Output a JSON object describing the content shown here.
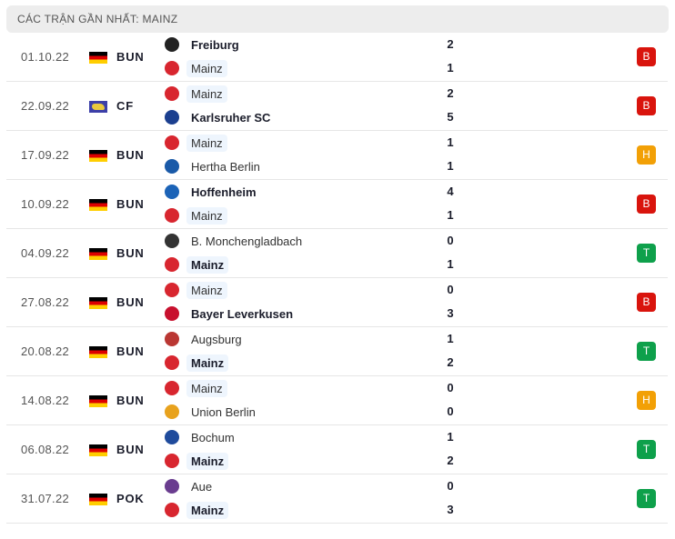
{
  "header": {
    "title": "CÁC TRẬN GẦN NHẤT: MAINZ"
  },
  "colors": {
    "loss": "#d9140d",
    "draw": "#f2a006",
    "win": "#0ea04b",
    "mainz_highlight": "#eef5fd"
  },
  "matches": [
    {
      "date": "01.10.22",
      "flag": "germany-flag-icon",
      "competition": "BUN",
      "home": {
        "name": "Freiburg",
        "logo": "freiburg-logo-icon",
        "score": "2",
        "bold": true,
        "highlight": false
      },
      "away": {
        "name": "Mainz",
        "logo": "mainz-logo-icon",
        "score": "1",
        "bold": false,
        "highlight": true
      },
      "result": "B"
    },
    {
      "date": "22.09.22",
      "flag": "world-flag-icon",
      "competition": "CF",
      "home": {
        "name": "Mainz",
        "logo": "mainz-logo-icon",
        "score": "2",
        "bold": false,
        "highlight": true
      },
      "away": {
        "name": "Karlsruher SC",
        "logo": "karlsruher-logo-icon",
        "score": "5",
        "bold": true,
        "highlight": false
      },
      "result": "B"
    },
    {
      "date": "17.09.22",
      "flag": "germany-flag-icon",
      "competition": "BUN",
      "home": {
        "name": "Mainz",
        "logo": "mainz-logo-icon",
        "score": "1",
        "bold": false,
        "highlight": true
      },
      "away": {
        "name": "Hertha Berlin",
        "logo": "hertha-logo-icon",
        "score": "1",
        "bold": false,
        "highlight": false
      },
      "result": "H"
    },
    {
      "date": "10.09.22",
      "flag": "germany-flag-icon",
      "competition": "BUN",
      "home": {
        "name": "Hoffenheim",
        "logo": "hoffenheim-logo-icon",
        "score": "4",
        "bold": true,
        "highlight": false
      },
      "away": {
        "name": "Mainz",
        "logo": "mainz-logo-icon",
        "score": "1",
        "bold": false,
        "highlight": true
      },
      "result": "B"
    },
    {
      "date": "04.09.22",
      "flag": "germany-flag-icon",
      "competition": "BUN",
      "home": {
        "name": "B. Monchengladbach",
        "logo": "gladbach-logo-icon",
        "score": "0",
        "bold": false,
        "highlight": false
      },
      "away": {
        "name": "Mainz",
        "logo": "mainz-logo-icon",
        "score": "1",
        "bold": true,
        "highlight": true
      },
      "result": "T"
    },
    {
      "date": "27.08.22",
      "flag": "germany-flag-icon",
      "competition": "BUN",
      "home": {
        "name": "Mainz",
        "logo": "mainz-logo-icon",
        "score": "0",
        "bold": false,
        "highlight": true
      },
      "away": {
        "name": "Bayer Leverkusen",
        "logo": "leverkusen-logo-icon",
        "score": "3",
        "bold": true,
        "highlight": false
      },
      "result": "B"
    },
    {
      "date": "20.08.22",
      "flag": "germany-flag-icon",
      "competition": "BUN",
      "home": {
        "name": "Augsburg",
        "logo": "augsburg-logo-icon",
        "score": "1",
        "bold": false,
        "highlight": false
      },
      "away": {
        "name": "Mainz",
        "logo": "mainz-logo-icon",
        "score": "2",
        "bold": true,
        "highlight": true
      },
      "result": "T"
    },
    {
      "date": "14.08.22",
      "flag": "germany-flag-icon",
      "competition": "BUN",
      "home": {
        "name": "Mainz",
        "logo": "mainz-logo-icon",
        "score": "0",
        "bold": false,
        "highlight": true
      },
      "away": {
        "name": "Union Berlin",
        "logo": "union-berlin-logo-icon",
        "score": "0",
        "bold": false,
        "highlight": false
      },
      "result": "H"
    },
    {
      "date": "06.08.22",
      "flag": "germany-flag-icon",
      "competition": "BUN",
      "home": {
        "name": "Bochum",
        "logo": "bochum-logo-icon",
        "score": "1",
        "bold": false,
        "highlight": false
      },
      "away": {
        "name": "Mainz",
        "logo": "mainz-logo-icon",
        "score": "2",
        "bold": true,
        "highlight": true
      },
      "result": "T"
    },
    {
      "date": "31.07.22",
      "flag": "germany-flag-icon",
      "competition": "POK",
      "home": {
        "name": "Aue",
        "logo": "aue-logo-icon",
        "score": "0",
        "bold": false,
        "highlight": false
      },
      "away": {
        "name": "Mainz",
        "logo": "mainz-logo-icon",
        "score": "3",
        "bold": true,
        "highlight": true
      },
      "result": "T"
    }
  ]
}
